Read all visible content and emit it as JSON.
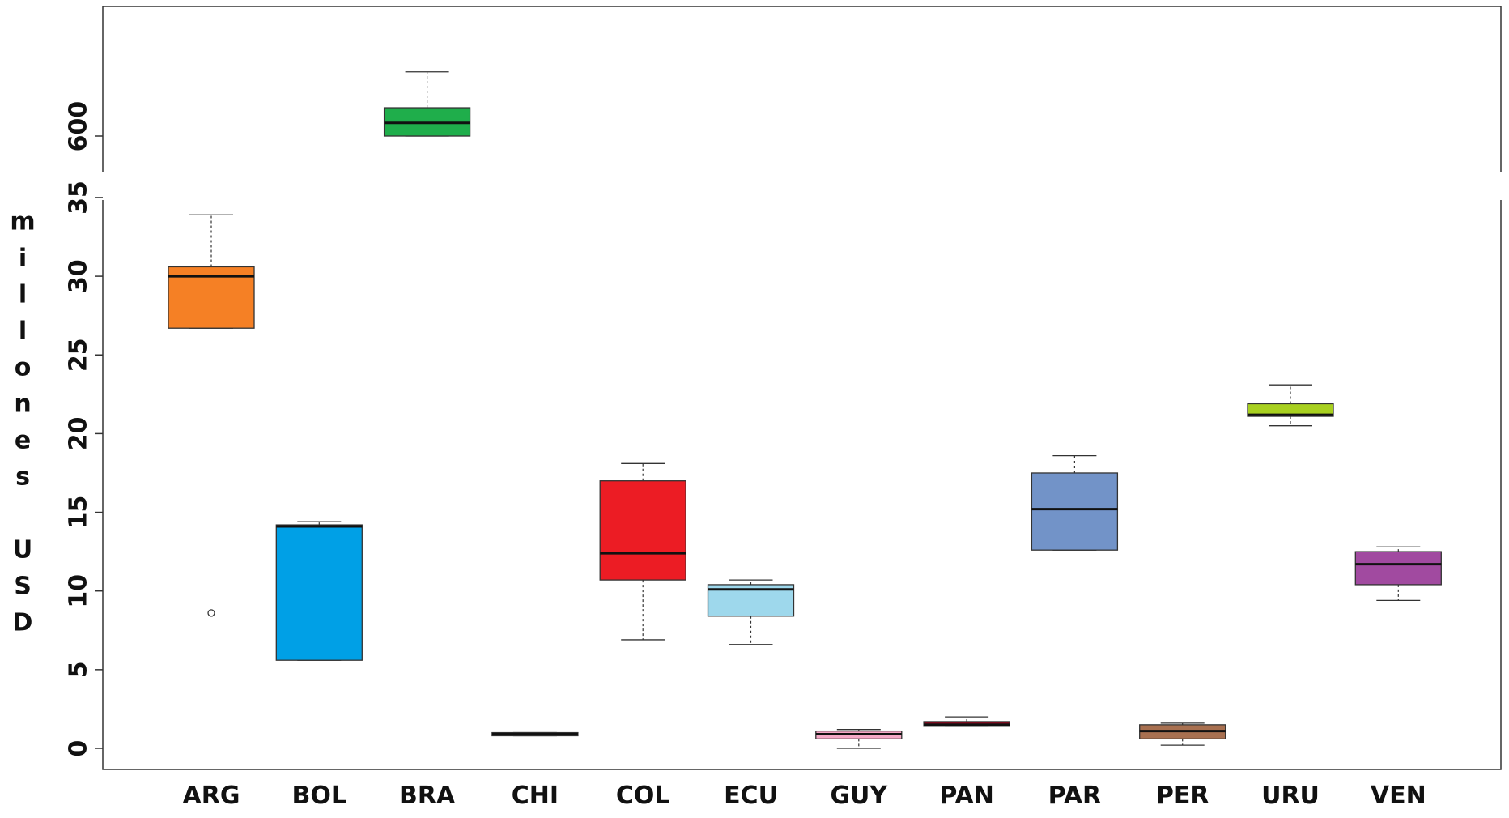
{
  "chart_data": {
    "type": "boxplot",
    "ylabel": "millones USD",
    "categories": [
      "ARG",
      "BOL",
      "BRA",
      "CHI",
      "COL",
      "ECU",
      "GUY",
      "PAN",
      "PAR",
      "PER",
      "URU",
      "VEN"
    ],
    "ylim_lower": [
      0,
      35
    ],
    "ylim_upper": [
      600,
      740
    ],
    "yticks_lower": [
      "0",
      "5",
      "10",
      "15",
      "20",
      "25",
      "30",
      "35"
    ],
    "yticks_upper": [
      "600"
    ],
    "boxes": [
      {
        "name": "ARG",
        "color": "#F58025",
        "whisker_low": 26.7,
        "q1": 26.7,
        "median": 30.0,
        "q3": 30.6,
        "whisker_high": 33.9,
        "outliers": [
          8.6
        ]
      },
      {
        "name": "BOL",
        "color": "#00A0E6",
        "whisker_low": 5.6,
        "q1": 5.6,
        "median": 14.1,
        "q3": 14.2,
        "whisker_high": 14.4,
        "outliers": []
      },
      {
        "name": "BRA",
        "color": "#1FAE4B",
        "whisker_low": 600,
        "q1": 600,
        "median": 614,
        "q3": 630,
        "whisker_high": 668,
        "outliers": []
      },
      {
        "name": "CHI",
        "color": "#1a1a6e",
        "whisker_low": 0.8,
        "q1": 0.8,
        "median": 0.9,
        "q3": 1.0,
        "whisker_high": 1.0,
        "outliers": []
      },
      {
        "name": "COL",
        "color": "#EC1C24",
        "whisker_low": 6.9,
        "q1": 10.7,
        "median": 12.4,
        "q3": 17.0,
        "whisker_high": 18.1,
        "outliers": []
      },
      {
        "name": "ECU",
        "color": "#9ED8EC",
        "whisker_low": 6.6,
        "q1": 8.4,
        "median": 10.1,
        "q3": 10.4,
        "whisker_high": 10.7,
        "outliers": []
      },
      {
        "name": "GUY",
        "color": "#F4A8C6",
        "whisker_low": 0.0,
        "q1": 0.6,
        "median": 0.9,
        "q3": 1.1,
        "whisker_high": 1.2,
        "outliers": []
      },
      {
        "name": "PAN",
        "color": "#7A0C1E",
        "whisker_low": 1.4,
        "q1": 1.4,
        "median": 1.5,
        "q3": 1.7,
        "whisker_high": 2.0,
        "outliers": []
      },
      {
        "name": "PAR",
        "color": "#7293C8",
        "whisker_low": 12.6,
        "q1": 12.6,
        "median": 15.2,
        "q3": 17.5,
        "whisker_high": 18.6,
        "outliers": []
      },
      {
        "name": "PER",
        "color": "#A87050",
        "whisker_low": 0.2,
        "q1": 0.6,
        "median": 1.1,
        "q3": 1.5,
        "whisker_high": 1.6,
        "outliers": []
      },
      {
        "name": "URU",
        "color": "#A8D020",
        "whisker_low": 20.5,
        "q1": 21.1,
        "median": 21.2,
        "q3": 21.9,
        "whisker_high": 23.1,
        "outliers": []
      },
      {
        "name": "VEN",
        "color": "#A14AA0",
        "whisker_low": 9.4,
        "q1": 10.4,
        "median": 11.7,
        "q3": 12.5,
        "whisker_high": 12.8,
        "outliers": []
      }
    ]
  }
}
